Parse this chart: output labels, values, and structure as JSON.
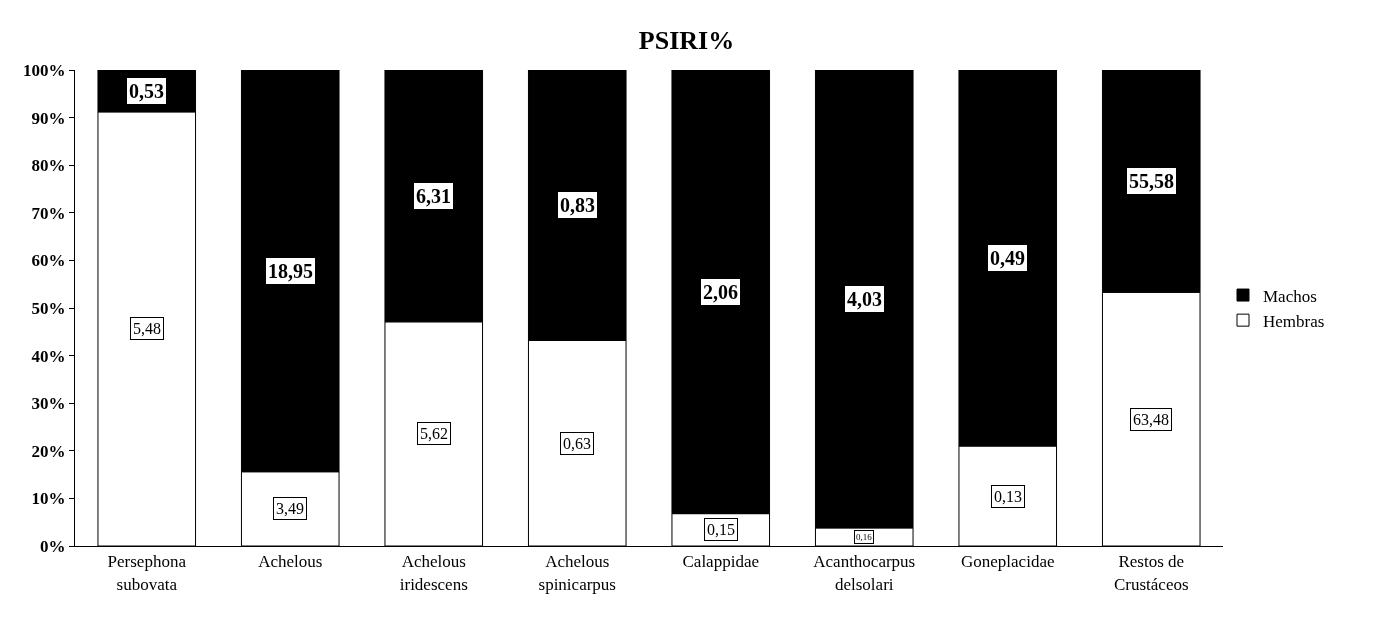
{
  "chart_data": {
    "type": "bar",
    "title": "PSIRI%",
    "stacked": true,
    "categories": [
      "Persephona\nsubovata",
      "Achelous",
      "Achelous\niridescens",
      "Achelous\nspinicarpus",
      "Calappidae",
      "Acanthocarpus\ndelsolari",
      "Goneplacidae",
      "Restos de\nCrustáceos"
    ],
    "series": [
      {
        "name": "Hembras",
        "color": "#ffffff",
        "values": [
          91.2,
          15.6,
          47.1,
          43.2,
          6.8,
          3.8,
          21.0,
          53.3
        ]
      },
      {
        "name": "Machos",
        "color": "#000000",
        "values": [
          8.8,
          84.4,
          52.9,
          56.8,
          93.2,
          96.2,
          79.0,
          46.7
        ]
      }
    ],
    "annotations": [
      "5,48",
      "3,49",
      "5,62",
      "0,63",
      "0,15",
      "0,16",
      "0,13",
      "63,48",
      "0,53",
      "18,95",
      "6,31",
      "0,83",
      "2,06",
      "4,03",
      "0,49",
      "55,58"
    ],
    "ylim": [
      0,
      100
    ],
    "yticks": [
      {
        "value": 0,
        "label": "0%"
      },
      {
        "value": 10,
        "label": "10%"
      },
      {
        "value": 20,
        "label": "20%"
      },
      {
        "value": 30,
        "label": "30%"
      },
      {
        "value": 40,
        "label": "40%"
      },
      {
        "value": 50,
        "label": "50%"
      },
      {
        "value": 60,
        "label": "60%"
      },
      {
        "value": 70,
        "label": "70%"
      },
      {
        "value": 80,
        "label": "80%"
      },
      {
        "value": 90,
        "label": "90%"
      },
      {
        "value": 100,
        "label": "100%"
      }
    ],
    "legend": "right"
  }
}
